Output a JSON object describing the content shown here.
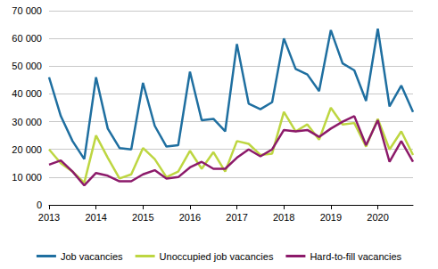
{
  "chart_data": {
    "type": "line",
    "categories": [
      "2013",
      null,
      null,
      null,
      "2014",
      null,
      null,
      null,
      "2015",
      null,
      null,
      null,
      "2016",
      null,
      null,
      null,
      "2017",
      null,
      null,
      null,
      "2018",
      null,
      null,
      null,
      "2019",
      null,
      null,
      null,
      "2020",
      null,
      null,
      null
    ],
    "series": [
      {
        "name": "Job vacancies",
        "color": "#1f6fa0",
        "values": [
          46000,
          32000,
          23000,
          16500,
          46000,
          27500,
          20500,
          20000,
          44000,
          28500,
          21000,
          21500,
          48000,
          30500,
          31000,
          26500,
          58000,
          36500,
          34500,
          37000,
          60000,
          49000,
          47000,
          41000,
          63000,
          51000,
          48500,
          37500,
          63500,
          35500,
          43000,
          33500
        ]
      },
      {
        "name": "Unoccupied job vacancies",
        "color": "#bdd641",
        "values": [
          20000,
          15000,
          12000,
          8000,
          25000,
          17000,
          9500,
          11000,
          20500,
          16500,
          10000,
          12000,
          19500,
          13000,
          19000,
          12000,
          23000,
          22000,
          18000,
          18500,
          33500,
          26500,
          29000,
          23500,
          35000,
          29000,
          29500,
          21000,
          31000,
          20000,
          26500,
          18000
        ]
      },
      {
        "name": "Hard-to-fill vacancies",
        "color": "#8c1a6a",
        "values": [
          14500,
          16000,
          12000,
          7000,
          11500,
          10500,
          8500,
          8500,
          11000,
          12500,
          9500,
          10000,
          13500,
          15500,
          13000,
          13000,
          17000,
          20000,
          17500,
          20000,
          27000,
          26500,
          27000,
          24500,
          27500,
          30000,
          32000,
          21500,
          30500,
          15500,
          23000,
          15500
        ]
      }
    ],
    "ylim": [
      0,
      70000
    ],
    "yticks": [
      0,
      {
        "value": 10000,
        "label": "10 000"
      },
      {
        "value": 20000,
        "label": "20 000"
      },
      {
        "value": 30000,
        "label": "30 000"
      },
      {
        "value": 40000,
        "label": "40 000"
      },
      {
        "value": 50000,
        "label": "50 000"
      },
      {
        "value": 60000,
        "label": "60 000"
      },
      {
        "value": 70000,
        "label": "70 000"
      }
    ],
    "grid": true,
    "legend": "bottom"
  }
}
